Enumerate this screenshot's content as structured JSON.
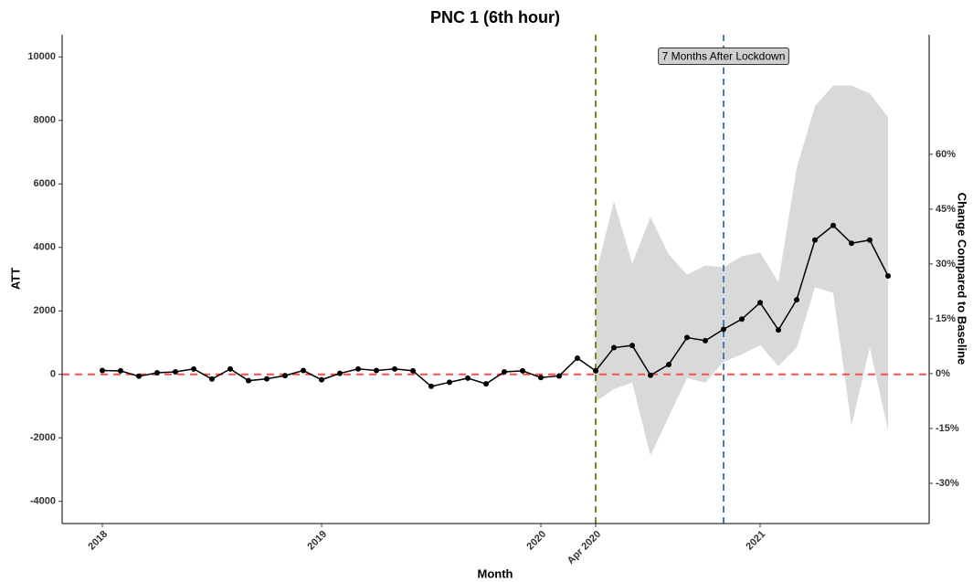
{
  "chart_data": {
    "type": "line",
    "title": "PNC 1 (6th hour)",
    "x_label": "Month",
    "y_label": "ATT",
    "y2_label": "Change Compared to Baseline",
    "x": [
      0,
      1,
      2,
      3,
      4,
      5,
      6,
      7,
      8,
      9,
      10,
      11,
      12,
      13,
      14,
      15,
      16,
      17,
      18,
      19,
      20,
      21,
      22,
      23,
      24,
      25,
      26,
      27,
      28,
      29,
      30,
      31,
      32,
      33,
      34,
      35,
      36,
      37,
      38,
      39,
      40,
      41,
      42,
      43
    ],
    "series": [
      {
        "color": "#000000",
        "band_color": "#d9d9d9",
        "values": [
          120,
          110,
          -60,
          50,
          80,
          170,
          -150,
          170,
          -200,
          -140,
          -40,
          120,
          -170,
          30,
          170,
          120,
          170,
          110,
          -380,
          -250,
          -120,
          -300,
          80,
          110,
          -100,
          -50,
          510,
          110,
          840,
          910,
          -30,
          310,
          1160,
          1060,
          1420,
          1740,
          2260,
          1400,
          2350,
          4230,
          4690,
          4130,
          4230,
          3100
        ],
        "lower": [
          null,
          null,
          null,
          null,
          null,
          null,
          null,
          null,
          null,
          null,
          null,
          null,
          null,
          null,
          null,
          null,
          null,
          null,
          null,
          null,
          null,
          null,
          null,
          null,
          null,
          null,
          null,
          -860,
          -460,
          -260,
          -2560,
          -1330,
          -120,
          -260,
          400,
          630,
          920,
          260,
          840,
          2740,
          2560,
          -1610,
          840,
          -1760
        ],
        "upper": [
          null,
          null,
          null,
          null,
          null,
          null,
          null,
          null,
          null,
          null,
          null,
          null,
          null,
          null,
          null,
          null,
          null,
          null,
          null,
          null,
          null,
          null,
          null,
          null,
          null,
          null,
          null,
          3140,
          5450,
          3490,
          4960,
          3780,
          3140,
          3430,
          3370,
          3720,
          3830,
          2910,
          6500,
          8450,
          9100,
          9100,
          8850,
          8100
        ]
      }
    ],
    "xlim": [
      -2.2,
      45.25
    ],
    "xticks": [
      {
        "value": 0,
        "label": "2018"
      },
      {
        "value": 12,
        "label": "2019"
      },
      {
        "value": 24,
        "label": "2020"
      },
      {
        "value": 27,
        "label": "Apr 2020"
      },
      {
        "value": 36,
        "label": "2021"
      }
    ],
    "ylim": [
      -4700,
      10700
    ],
    "yticks": [
      -4000,
      -2000,
      0,
      2000,
      4000,
      6000,
      8000,
      10000
    ],
    "y2lim": [
      -41,
      92.7
    ],
    "y2ticks": [
      {
        "value": -30,
        "label": "-30%"
      },
      {
        "value": -15,
        "label": "-15%"
      },
      {
        "value": 0,
        "label": "0%"
      },
      {
        "value": 15,
        "label": "15%"
      },
      {
        "value": 30,
        "label": "30%"
      },
      {
        "value": 45,
        "label": "45%"
      },
      {
        "value": 60,
        "label": "60%"
      }
    ],
    "hline": {
      "y": 0,
      "color": "#ff4d4d"
    },
    "vlines": [
      {
        "x": 27,
        "color": "#6b8e23"
      },
      {
        "x": 34,
        "color": "#4a7ab0"
      }
    ],
    "annotation": {
      "text": "7 Months After Lockdown",
      "x": 34,
      "y": 10000
    }
  }
}
